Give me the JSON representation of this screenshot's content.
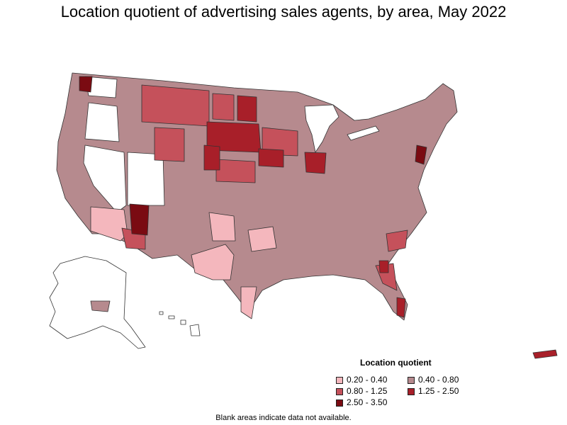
{
  "title": "Location quotient of advertising sales agents, by area, May 2022",
  "legend": {
    "title": "Location quotient",
    "items": [
      {
        "label": "0.20 - 0.40",
        "color": "#f4b7bd"
      },
      {
        "label": "0.40 - 0.80",
        "color": "#b68a8e"
      },
      {
        "label": "0.80 - 1.25",
        "color": "#c5515b"
      },
      {
        "label": "1.25 - 2.50",
        "color": "#a81f29"
      },
      {
        "label": "2.50 - 3.50",
        "color": "#7a0b12"
      }
    ]
  },
  "footnote": "Blank areas indicate data not available.",
  "map": {
    "kind": "choropleth",
    "region": "United States (incl. Alaska, Hawaii, Puerto Rico)",
    "unit": "metropolitan / nonmetropolitan areas"
  }
}
